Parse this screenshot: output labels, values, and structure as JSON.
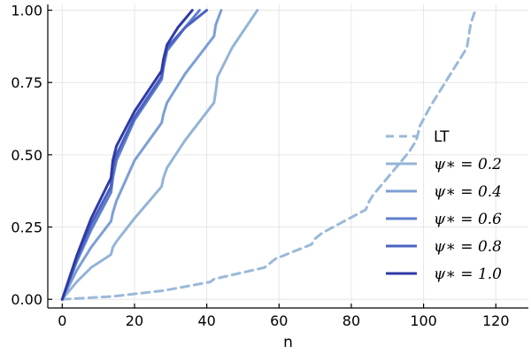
{
  "chart_data": {
    "type": "line",
    "title": "",
    "xlabel": "n",
    "ylabel": "",
    "xlim": [
      -4,
      129
    ],
    "ylim": [
      -0.03,
      1.02
    ],
    "xticks": [
      0,
      20,
      40,
      60,
      80,
      100,
      120
    ],
    "xtick_labels": [
      "0",
      "20",
      "40",
      "60",
      "80",
      "100",
      "120"
    ],
    "yticks": [
      0.0,
      0.25,
      0.5,
      0.75,
      1.0
    ],
    "ytick_labels": [
      "0.00",
      "0.25",
      "0.50",
      "0.75",
      "1.00"
    ],
    "grid": true,
    "legend_position": "right",
    "series": [
      {
        "name": "LT",
        "color": "#9bb9d9",
        "dash": true,
        "x": [
          0,
          14,
          28,
          41,
          42,
          56,
          59,
          69,
          70,
          72,
          84,
          85,
          86,
          90,
          96,
          98,
          99,
          102,
          112,
          113,
          114,
          115
        ],
        "y": [
          0.0,
          0.01,
          0.03,
          0.06,
          0.07,
          0.11,
          0.14,
          0.19,
          0.21,
          0.23,
          0.31,
          0.34,
          0.36,
          0.42,
          0.51,
          0.55,
          0.6,
          0.67,
          0.87,
          0.95,
          0.99,
          1.0
        ]
      },
      {
        "name": "ψ∗ = 0.2",
        "color": "#93b4d8",
        "dash": false,
        "x": [
          0,
          4,
          8,
          13.5,
          14,
          15,
          20,
          27.5,
          28,
          29,
          34,
          42,
          42.5,
          43,
          47,
          54
        ],
        "y": [
          0.0,
          0.06,
          0.11,
          0.155,
          0.18,
          0.2,
          0.28,
          0.39,
          0.42,
          0.455,
          0.55,
          0.68,
          0.72,
          0.77,
          0.87,
          1.0
        ]
      },
      {
        "name": "ψ∗ = 0.4",
        "color": "#7d9fd4",
        "dash": false,
        "x": [
          0,
          4,
          8,
          13.5,
          14,
          15,
          20,
          27.5,
          28,
          29,
          34,
          42,
          42.5,
          44
        ],
        "y": [
          0.0,
          0.1,
          0.18,
          0.27,
          0.3,
          0.34,
          0.48,
          0.61,
          0.64,
          0.68,
          0.78,
          0.91,
          0.95,
          1.0
        ]
      },
      {
        "name": "ψ∗ = 0.6",
        "color": "#5e7fcc",
        "dash": false,
        "x": [
          0,
          4,
          8,
          13.5,
          14,
          15,
          20,
          27.5,
          28,
          29,
          34,
          38
        ],
        "y": [
          0.0,
          0.13,
          0.24,
          0.37,
          0.42,
          0.48,
          0.62,
          0.76,
          0.8,
          0.86,
          0.94,
          1.0
        ]
      },
      {
        "name": "ψ∗ = 0.8",
        "color": "#4a62c2",
        "dash": false,
        "x": [
          0,
          4,
          8,
          13.5,
          14,
          15,
          20,
          27.5,
          28,
          29,
          34,
          40
        ],
        "y": [
          0.0,
          0.14,
          0.26,
          0.39,
          0.45,
          0.5,
          0.63,
          0.77,
          0.82,
          0.87,
          0.94,
          1.0
        ]
      },
      {
        "name": "ψ∗ = 1.0",
        "color": "#2f3aa6",
        "dash": false,
        "x": [
          0,
          4,
          8,
          13.5,
          14,
          15,
          20,
          27.5,
          28,
          29,
          32,
          36
        ],
        "y": [
          0.0,
          0.15,
          0.28,
          0.42,
          0.48,
          0.53,
          0.65,
          0.79,
          0.83,
          0.88,
          0.94,
          1.0
        ]
      }
    ]
  }
}
